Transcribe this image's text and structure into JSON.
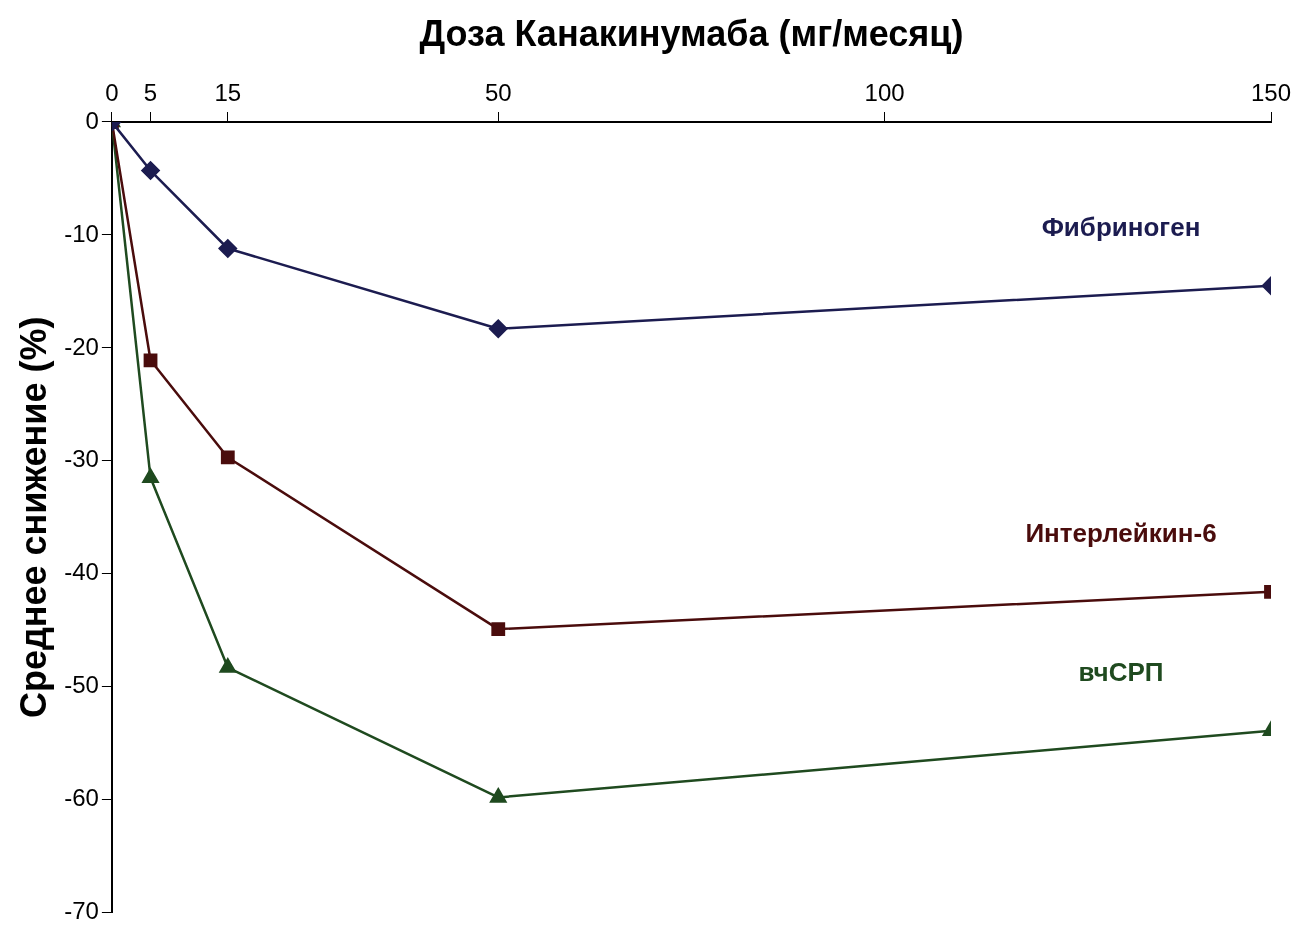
{
  "chart_data": {
    "type": "line",
    "xlabel": "Доза Канакинумаба (мг/месяц)",
    "ylabel": "Среднее снижение (%)",
    "x": [
      0,
      5,
      15,
      50,
      150
    ],
    "series": [
      {
        "name": "Фибриноген",
        "color": "#1c1c50",
        "marker": "diamond",
        "values": [
          0,
          -4.3,
          -11.2,
          -18.3,
          -14.5
        ]
      },
      {
        "name": "Интерлейкин-6",
        "color": "#4a0c0c",
        "marker": "square",
        "values": [
          0,
          -21.1,
          -29.7,
          -44.9,
          -41.6
        ]
      },
      {
        "name": "вчСРП",
        "color": "#1f4a1f",
        "marker": "triangle",
        "values": [
          0,
          -31.5,
          -48.3,
          -59.8,
          -53.9
        ]
      }
    ],
    "xlim": [
      0,
      150
    ],
    "xticks": [
      0,
      5,
      15,
      50,
      100,
      150
    ],
    "ylim": [
      -70,
      0
    ],
    "yticks": [
      0,
      -10,
      -20,
      -30,
      -40,
      -50,
      -60,
      -70
    ],
    "grid": false,
    "legend": false,
    "line_style": "solid"
  }
}
